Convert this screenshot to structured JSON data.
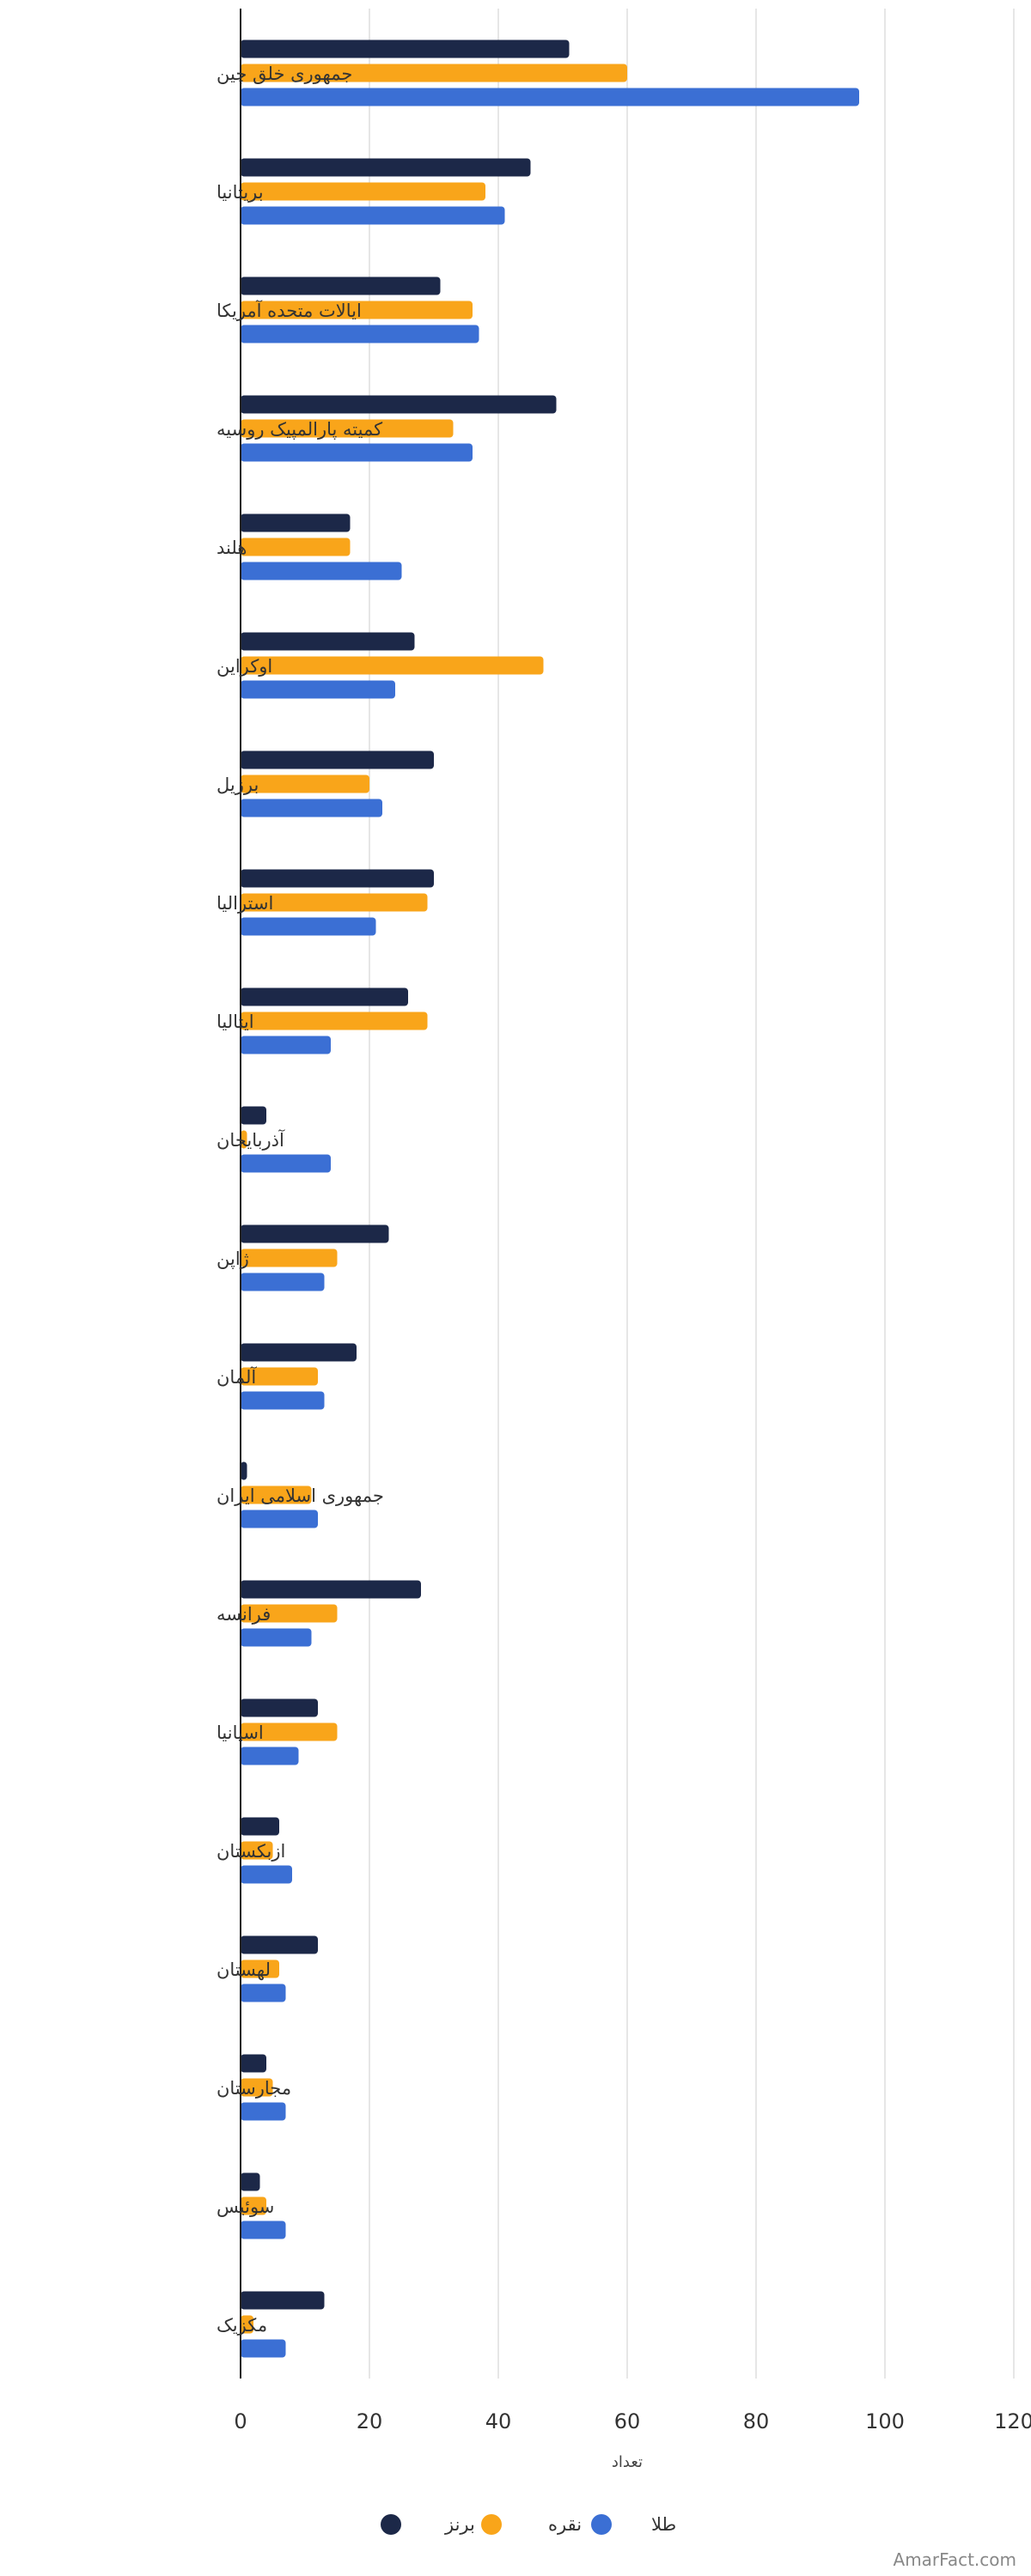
{
  "chart_data": {
    "type": "bar",
    "orientation": "horizontal",
    "title": "",
    "xlabel": "تعداد",
    "ylabel": "",
    "xlim": [
      0,
      120
    ],
    "xticks": [
      0,
      20,
      40,
      60,
      80,
      100,
      120
    ],
    "grid": true,
    "legend_position": "bottom",
    "categories": [
      "جمهوری خلق چین",
      "بریتانیا",
      "ایالات متحده آمریکا",
      "کمیته پارالمپیک روسیه",
      "هلند",
      "اوکراین",
      "برزیل",
      "استرالیا",
      "ایتالیا",
      "آذربایجان",
      "ژاپن",
      "آلمان",
      "جمهوری اسلامی ایران",
      "فرانسه",
      "اسپانیا",
      "ازبکستان",
      "لهستان",
      "مجارستان",
      "سوئیس",
      "مکزیک"
    ],
    "series": [
      {
        "name": "برنز",
        "color": "#1c2848",
        "values": [
          51,
          45,
          31,
          49,
          17,
          27,
          30,
          30,
          26,
          4,
          23,
          18,
          1,
          28,
          12,
          6,
          12,
          4,
          3,
          13
        ]
      },
      {
        "name": "نقره",
        "color": "#f9a51a",
        "values": [
          60,
          38,
          36,
          33,
          17,
          47,
          20,
          29,
          29,
          1,
          15,
          12,
          11,
          15,
          15,
          5,
          6,
          5,
          4,
          2
        ]
      },
      {
        "name": "طلا",
        "color": "#3b6fd4",
        "values": [
          96,
          41,
          37,
          36,
          25,
          24,
          22,
          21,
          14,
          14,
          13,
          13,
          12,
          11,
          9,
          8,
          7,
          7,
          7,
          7
        ]
      }
    ]
  },
  "watermark": "AmarFact.com"
}
